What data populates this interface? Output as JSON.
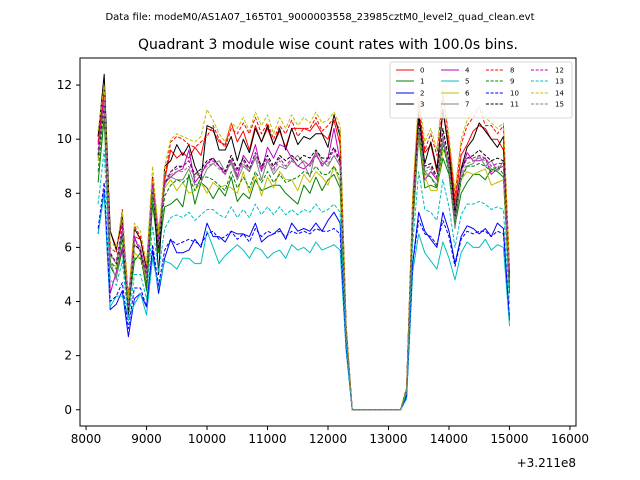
{
  "suptitle": "Data file: modeM0/AS1A07_165T01_9000003558_23985cztM0_level2_quad_clean.evt",
  "chart_data": {
    "type": "line",
    "title": "Quadrant 3 module wise count rates with 100.0s bins.",
    "xlabel": "",
    "ylabel": "",
    "x_offset_label": "+3.211e8",
    "xlim": [
      7900,
      16100
    ],
    "ylim": [
      -0.6,
      13.0
    ],
    "x_ticks": [
      8000,
      9000,
      10000,
      11000,
      12000,
      13000,
      14000,
      15000,
      16000
    ],
    "y_ticks": [
      0,
      2,
      4,
      6,
      8,
      10,
      12
    ],
    "x_tick_labels": [
      "8000",
      "9000",
      "10000",
      "11000",
      "12000",
      "13000",
      "14000",
      "15000",
      "16000"
    ],
    "y_tick_labels": [
      "0",
      "2",
      "4",
      "6",
      "8",
      "10",
      "12"
    ],
    "grid": false,
    "legend_placement": "upper-right",
    "legend_columns": 4,
    "x_start": 8200,
    "x_step": 100,
    "series": [
      {
        "name": "0",
        "color": "#ff0000",
        "dash": "solid",
        "values": [
          10.1,
          11.9,
          6.6,
          6.0,
          6.9,
          4.2,
          6.4,
          6.3,
          5.2,
          8.4,
          6.0,
          8.5,
          9.6,
          9.3,
          9.5,
          9.3,
          9.7,
          9.4,
          10.4,
          10.3,
          9.9,
          9.8,
          10.6,
          9.9,
          10.3,
          9.6,
          10.5,
          9.9,
          10.4,
          9.8,
          10.3,
          9.7,
          10.4,
          10.4,
          10.4,
          10.3,
          10.6,
          10.2,
          10.0,
          10.7,
          9.8,
          3.0,
          0.0,
          0.0,
          0.0,
          0.0,
          0.0,
          0.0,
          0.0,
          0.0,
          0.0,
          0.8,
          7.5,
          11.0,
          9.5,
          9.8,
          8.8,
          11.0,
          9.8,
          7.6,
          9.4,
          9.8,
          10.3,
          10.5,
          10.4,
          10.0,
          10.0,
          9.6,
          4.9
        ]
      },
      {
        "name": "1",
        "color": "#008000",
        "dash": "solid",
        "values": [
          8.4,
          10.8,
          5.3,
          4.9,
          5.9,
          3.7,
          5.5,
          5.8,
          4.4,
          7.6,
          5.8,
          7.5,
          7.6,
          7.8,
          7.5,
          8.7,
          7.6,
          8.4,
          8.2,
          7.8,
          8.2,
          7.9,
          8.6,
          7.7,
          8.0,
          7.8,
          8.5,
          8.1,
          8.2,
          8.3,
          8.3,
          8.0,
          7.8,
          7.6,
          8.3,
          8.0,
          8.6,
          8.1,
          8.5,
          8.7,
          8.2,
          2.7,
          0.0,
          0.0,
          0.0,
          0.0,
          0.0,
          0.0,
          0.0,
          0.0,
          0.0,
          0.6,
          6.7,
          10.1,
          8.2,
          8.3,
          8.2,
          9.3,
          8.7,
          6.8,
          8.0,
          8.4,
          8.7,
          8.7,
          8.5,
          8.9,
          8.8,
          8.6,
          4.3
        ]
      },
      {
        "name": "2",
        "color": "#0000ff",
        "dash": "solid",
        "values": [
          6.5,
          8.1,
          3.7,
          3.9,
          4.4,
          2.7,
          4.1,
          4.3,
          3.8,
          5.9,
          4.3,
          5.6,
          6.3,
          5.8,
          5.8,
          5.9,
          6.3,
          6.0,
          6.9,
          6.4,
          6.4,
          6.2,
          6.6,
          6.5,
          6.5,
          6.4,
          6.9,
          6.2,
          6.4,
          6.5,
          6.7,
          6.3,
          6.9,
          6.6,
          6.7,
          6.6,
          6.9,
          6.6,
          7.0,
          7.3,
          6.9,
          2.4,
          0.0,
          0.0,
          0.0,
          0.0,
          0.0,
          0.0,
          0.0,
          0.0,
          0.0,
          0.5,
          5.4,
          7.3,
          6.6,
          6.3,
          6.0,
          7.3,
          6.6,
          5.4,
          6.4,
          6.8,
          6.7,
          6.5,
          6.7,
          6.4,
          6.9,
          6.7,
          3.3
        ]
      },
      {
        "name": "3",
        "color": "#000000",
        "dash": "solid",
        "values": [
          10.1,
          12.4,
          6.6,
          5.9,
          7.2,
          3.5,
          6.7,
          6.3,
          5.2,
          8.6,
          5.0,
          9.0,
          9.2,
          9.8,
          9.4,
          9.8,
          9.0,
          8.5,
          10.5,
          10.4,
          9.6,
          9.6,
          10.1,
          9.2,
          10.0,
          9.5,
          10.4,
          9.9,
          10.5,
          9.8,
          10.4,
          9.6,
          10.4,
          9.8,
          10.1,
          10.0,
          10.2,
          10.2,
          9.7,
          10.9,
          10.1,
          3.1,
          0.0,
          0.0,
          0.0,
          0.0,
          0.0,
          0.0,
          0.0,
          0.0,
          0.0,
          0.8,
          7.6,
          10.9,
          9.1,
          9.9,
          8.9,
          11.1,
          9.5,
          7.3,
          8.9,
          9.7,
          10.0,
          10.6,
          10.3,
          10.0,
          9.7,
          10.1,
          5.0
        ]
      },
      {
        "name": "4",
        "color": "#bf00bf",
        "dash": "solid",
        "values": [
          9.8,
          11.8,
          4.3,
          5.1,
          6.0,
          4.0,
          6.4,
          5.8,
          4.7,
          8.5,
          6.5,
          8.4,
          8.6,
          8.8,
          8.9,
          9.6,
          8.4,
          8.7,
          9.1,
          9.3,
          9.0,
          8.7,
          9.2,
          8.6,
          9.4,
          9.1,
          9.8,
          8.8,
          9.7,
          9.3,
          9.8,
          9.7,
          9.3,
          9.0,
          8.9,
          9.1,
          9.5,
          9.0,
          9.3,
          10.4,
          9.2,
          2.8,
          0.0,
          0.0,
          0.0,
          0.0,
          0.0,
          0.0,
          0.0,
          0.0,
          0.0,
          0.7,
          7.5,
          10.4,
          8.5,
          8.8,
          8.5,
          10.0,
          9.0,
          6.9,
          8.8,
          9.5,
          9.2,
          9.2,
          9.3,
          8.7,
          8.9,
          9.0,
          4.7
        ]
      },
      {
        "name": "5",
        "color": "#00bfbf",
        "dash": "solid",
        "values": [
          6.5,
          8.0,
          3.8,
          4.2,
          4.2,
          3.4,
          3.9,
          4.3,
          3.5,
          5.6,
          4.5,
          5.5,
          5.4,
          5.2,
          5.6,
          5.6,
          5.4,
          5.4,
          6.6,
          6.0,
          5.4,
          5.7,
          5.9,
          6.1,
          5.9,
          5.6,
          6.0,
          5.9,
          5.6,
          5.8,
          5.9,
          5.6,
          6.1,
          5.9,
          6.0,
          5.8,
          6.2,
          5.9,
          6.0,
          6.1,
          5.9,
          2.2,
          0.0,
          0.0,
          0.0,
          0.0,
          0.0,
          0.0,
          0.0,
          0.0,
          0.0,
          0.4,
          5.1,
          6.5,
          5.8,
          5.5,
          5.2,
          6.2,
          5.6,
          4.8,
          5.8,
          6.2,
          6.0,
          6.0,
          6.3,
          5.9,
          6.1,
          6.0,
          3.1
        ]
      },
      {
        "name": "6",
        "color": "#bfbf00",
        "dash": "solid",
        "values": [
          9.2,
          11.3,
          5.4,
          5.3,
          6.6,
          4.0,
          5.8,
          5.6,
          4.8,
          8.5,
          6.7,
          8.2,
          8.5,
          8.1,
          8.4,
          8.0,
          8.1,
          8.4,
          8.0,
          8.4,
          8.2,
          8.3,
          8.2,
          8.0,
          8.8,
          8.0,
          8.7,
          7.9,
          8.6,
          8.2,
          8.8,
          8.5,
          8.5,
          8.1,
          8.7,
          8.4,
          8.8,
          8.6,
          8.3,
          9.0,
          8.4,
          2.9,
          0.0,
          0.0,
          0.0,
          0.0,
          0.0,
          0.0,
          0.0,
          0.0,
          0.0,
          0.7,
          7.0,
          10.2,
          8.6,
          8.1,
          8.1,
          9.6,
          9.2,
          6.9,
          8.5,
          8.8,
          8.7,
          8.8,
          8.9,
          8.3,
          8.4,
          8.5,
          4.6
        ]
      },
      {
        "name": "7",
        "color": "#808080",
        "dash": "solid",
        "values": [
          9.4,
          11.5,
          5.5,
          4.8,
          6.5,
          3.8,
          6.1,
          5.9,
          5.0,
          8.3,
          6.3,
          8.7,
          8.6,
          8.5,
          8.5,
          8.9,
          8.3,
          8.4,
          8.9,
          9.1,
          9.2,
          8.8,
          9.1,
          8.5,
          9.0,
          8.8,
          9.3,
          8.5,
          9.2,
          8.7,
          9.0,
          8.9,
          9.2,
          9.4,
          9.1,
          8.6,
          9.6,
          9.2,
          9.0,
          9.4,
          9.0,
          2.9,
          0.0,
          0.0,
          0.0,
          0.0,
          0.0,
          0.0,
          0.0,
          0.0,
          0.0,
          0.7,
          7.0,
          10.3,
          8.8,
          8.6,
          8.3,
          10.0,
          8.8,
          6.7,
          8.6,
          9.0,
          9.1,
          9.4,
          9.0,
          9.2,
          8.8,
          9.2,
          4.7
        ]
      },
      {
        "name": "8",
        "color": "#ff0000",
        "dash": "dashed",
        "values": [
          9.9,
          11.6,
          6.0,
          5.8,
          7.4,
          4.0,
          6.8,
          6.4,
          5.3,
          8.6,
          6.2,
          8.6,
          9.9,
          10.1,
          10.0,
          9.8,
          9.7,
          9.9,
          10.1,
          10.5,
          10.0,
          9.7,
          10.4,
          10.2,
          10.6,
          10.2,
          10.8,
          10.2,
          10.6,
          10.0,
          10.5,
          10.2,
          10.7,
          10.1,
          10.4,
          10.4,
          10.8,
          10.3,
          10.5,
          10.8,
          10.3,
          3.1,
          0.0,
          0.0,
          0.0,
          0.0,
          0.0,
          0.0,
          0.0,
          0.0,
          0.0,
          0.8,
          7.8,
          11.3,
          9.6,
          10.2,
          9.4,
          11.6,
          9.9,
          7.9,
          9.8,
          10.5,
          10.8,
          11.2,
          10.5,
          10.5,
          10.2,
          10.5,
          5.3
        ]
      },
      {
        "name": "9",
        "color": "#008000",
        "dash": "dashed",
        "values": [
          8.8,
          11.2,
          5.5,
          5.2,
          6.3,
          3.6,
          5.6,
          5.6,
          4.6,
          7.9,
          6.1,
          7.9,
          8.3,
          8.5,
          8.4,
          8.6,
          8.1,
          8.6,
          8.6,
          8.5,
          8.3,
          8.1,
          8.8,
          8.2,
          8.6,
          8.2,
          8.8,
          8.4,
          8.8,
          8.4,
          8.7,
          8.4,
          8.5,
          8.6,
          8.8,
          8.7,
          9.0,
          8.7,
          8.7,
          9.0,
          8.6,
          2.8,
          0.0,
          0.0,
          0.0,
          0.0,
          0.0,
          0.0,
          0.0,
          0.0,
          0.0,
          0.7,
          7.0,
          10.4,
          8.7,
          8.6,
          8.2,
          9.8,
          8.8,
          6.9,
          8.5,
          9.0,
          9.0,
          9.1,
          9.0,
          8.8,
          9.0,
          8.7,
          4.5
        ]
      },
      {
        "name": "10",
        "color": "#0000ff",
        "dash": "dashed",
        "values": [
          6.7,
          8.4,
          4.0,
          4.2,
          4.7,
          3.0,
          4.5,
          4.5,
          3.8,
          6.1,
          4.6,
          5.9,
          6.3,
          6.1,
          6.2,
          6.3,
          6.2,
          6.1,
          6.5,
          6.6,
          6.3,
          6.4,
          6.6,
          6.3,
          6.5,
          6.2,
          6.7,
          6.4,
          6.6,
          6.5,
          6.6,
          6.4,
          6.6,
          6.5,
          6.6,
          6.5,
          6.7,
          6.6,
          6.6,
          6.7,
          6.5,
          2.3,
          0.0,
          0.0,
          0.0,
          0.0,
          0.0,
          0.0,
          0.0,
          0.0,
          0.0,
          0.5,
          5.4,
          7.0,
          6.5,
          6.4,
          6.1,
          7.0,
          6.4,
          5.3,
          6.3,
          6.6,
          6.5,
          6.6,
          6.6,
          6.4,
          6.6,
          6.5,
          3.4
        ]
      },
      {
        "name": "11",
        "color": "#000000",
        "dash": "dashed",
        "values": [
          9.4,
          11.3,
          5.8,
          5.4,
          6.6,
          3.7,
          6.1,
          5.9,
          4.9,
          8.2,
          6.0,
          8.3,
          8.8,
          9.0,
          9.0,
          9.2,
          8.7,
          8.9,
          9.2,
          9.3,
          9.0,
          8.8,
          9.4,
          8.9,
          9.3,
          8.9,
          9.5,
          9.0,
          9.4,
          9.0,
          9.4,
          9.2,
          9.4,
          9.2,
          9.4,
          9.3,
          9.6,
          9.3,
          9.3,
          9.7,
          9.2,
          2.9,
          0.0,
          0.0,
          0.0,
          0.0,
          0.0,
          0.0,
          0.0,
          0.0,
          0.0,
          0.7,
          7.2,
          10.6,
          9.0,
          9.1,
          8.6,
          10.4,
          9.2,
          7.1,
          8.9,
          9.3,
          9.4,
          9.6,
          9.4,
          9.2,
          9.3,
          9.2,
          4.7
        ]
      },
      {
        "name": "12",
        "color": "#bf00bf",
        "dash": "dashed",
        "values": [
          9.6,
          11.5,
          5.7,
          5.5,
          6.8,
          3.9,
          6.3,
          6.0,
          5.0,
          8.3,
          6.3,
          8.4,
          8.8,
          8.9,
          9.0,
          9.2,
          8.6,
          8.8,
          9.1,
          9.2,
          9.0,
          8.7,
          9.3,
          8.8,
          9.2,
          8.8,
          9.5,
          8.9,
          9.3,
          8.9,
          9.3,
          9.0,
          9.3,
          9.0,
          9.2,
          9.0,
          9.4,
          9.1,
          9.2,
          9.6,
          9.1,
          2.9,
          0.0,
          0.0,
          0.0,
          0.0,
          0.0,
          0.0,
          0.0,
          0.0,
          0.0,
          0.7,
          7.3,
          10.5,
          8.9,
          9.0,
          8.5,
          10.2,
          9.1,
          7.1,
          8.8,
          9.3,
          9.3,
          9.4,
          9.3,
          9.0,
          9.1,
          9.1,
          4.7
        ]
      },
      {
        "name": "13",
        "color": "#00bfbf",
        "dash": "dashed",
        "values": [
          7.6,
          9.6,
          4.8,
          4.6,
          5.5,
          3.3,
          5.0,
          5.0,
          4.1,
          6.8,
          5.1,
          6.7,
          7.1,
          7.2,
          7.1,
          7.3,
          7.0,
          7.2,
          7.4,
          7.4,
          7.2,
          7.1,
          7.5,
          7.1,
          7.4,
          7.1,
          7.6,
          7.2,
          7.5,
          7.2,
          7.5,
          7.2,
          7.4,
          7.2,
          7.4,
          7.3,
          7.6,
          7.3,
          7.4,
          7.6,
          7.3,
          2.5,
          0.0,
          0.0,
          0.0,
          0.0,
          0.0,
          0.0,
          0.0,
          0.0,
          0.0,
          0.6,
          6.1,
          8.8,
          7.4,
          7.3,
          7.0,
          8.5,
          7.5,
          6.0,
          7.2,
          7.6,
          7.6,
          7.7,
          7.6,
          7.4,
          7.5,
          7.4,
          3.9
        ]
      },
      {
        "name": "14",
        "color": "#bfbf00",
        "dash": "dashed",
        "values": [
          10.3,
          12.0,
          6.2,
          6.0,
          7.3,
          4.1,
          6.9,
          6.6,
          5.4,
          9.0,
          6.5,
          9.0,
          10.0,
          10.2,
          10.1,
          10.0,
          9.9,
          10.1,
          11.1,
          10.7,
          10.2,
          9.9,
          10.6,
          10.4,
          10.8,
          10.3,
          11.0,
          10.5,
          10.9,
          10.2,
          10.8,
          10.4,
          10.9,
          10.5,
          10.8,
          10.6,
          11.0,
          10.6,
          10.7,
          11.0,
          10.5,
          3.2,
          0.0,
          0.0,
          0.0,
          0.0,
          0.0,
          0.0,
          0.0,
          0.0,
          0.0,
          0.8,
          8.0,
          11.6,
          9.9,
          10.4,
          9.6,
          11.9,
          10.1,
          8.1,
          10.0,
          10.7,
          11.0,
          11.2,
          10.8,
          10.6,
          10.4,
          10.6,
          5.3
        ]
      },
      {
        "name": "15",
        "color": "#808080",
        "dash": "dashed",
        "values": [
          9.3,
          11.4,
          5.7,
          5.4,
          6.6,
          3.8,
          6.2,
          6.0,
          4.9,
          8.2,
          6.1,
          8.3,
          8.7,
          8.8,
          8.8,
          9.0,
          8.6,
          8.8,
          9.0,
          9.1,
          8.9,
          8.7,
          9.2,
          8.7,
          9.1,
          8.8,
          9.4,
          8.8,
          9.2,
          8.8,
          9.2,
          8.9,
          9.2,
          9.0,
          9.2,
          9.0,
          9.4,
          9.1,
          9.1,
          9.4,
          9.0,
          2.9,
          0.0,
          0.0,
          0.0,
          0.0,
          0.0,
          0.0,
          0.0,
          0.0,
          0.0,
          0.7,
          7.2,
          10.4,
          8.8,
          8.9,
          8.5,
          10.1,
          9.0,
          7.0,
          8.7,
          9.1,
          9.2,
          9.3,
          9.2,
          8.9,
          9.0,
          9.0,
          4.6
        ]
      }
    ]
  }
}
